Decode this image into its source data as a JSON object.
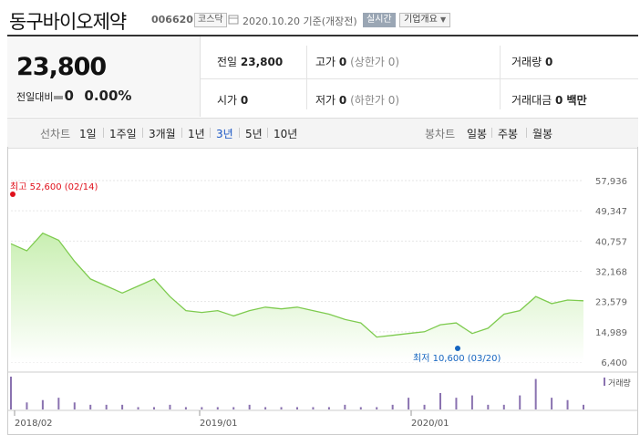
{
  "header": {
    "company_name": "동구바이오제약",
    "stock_code": "006620",
    "market": "코스닥",
    "date_text": "2020.10.20 기준(개장전)",
    "live_label": "실시간",
    "company_info_label": "기업개요"
  },
  "quote": {
    "price": "23,800",
    "change_label": "전일대비",
    "change_value": "0",
    "change_pct": "0.00%",
    "prev_close_label": "전일",
    "prev_close": "23,800",
    "high_label": "고가",
    "high": "0",
    "high_note": "(상한가 0)",
    "volume_label": "거래량",
    "volume": "0",
    "open_label": "시가",
    "open": "0",
    "low_label": "저가",
    "low": "0",
    "low_note": "(하한가 0)",
    "value_label": "거래대금",
    "value": "0 백만"
  },
  "periods": {
    "line_label": "선차트",
    "line_options": [
      "1일",
      "1주일",
      "3개월",
      "1년",
      "3년",
      "5년",
      "10년"
    ],
    "selected": "3년",
    "candle_label": "봉차트",
    "candle_options": [
      "일봉",
      "주봉",
      "월봉"
    ]
  },
  "colors": {
    "line": "#7ecb4f",
    "area_top": "#c9efb2",
    "selected": "#1a56c4",
    "high_marker": "#e0101b",
    "low_marker": "#1565c0",
    "volume_bar": "#8a72b0"
  },
  "chart_data": {
    "type": "area",
    "ylim": [
      6400,
      57936
    ],
    "y_ticks": [
      "57,936",
      "49,347",
      "40,757",
      "32,168",
      "23,579",
      "14,989",
      "6,400"
    ],
    "x_tick_labels": [
      "2018/02",
      "2019/01",
      "2020/01"
    ],
    "high_label": "최고 52,600 (02/14)",
    "low_label": "최저 10,600 (03/20)",
    "volume_legend": "거래량",
    "x": [
      "2017-10",
      "2017-11",
      "2017-12",
      "2018-01",
      "2018-02",
      "2018-03",
      "2018-04",
      "2018-05",
      "2018-06",
      "2018-07",
      "2018-08",
      "2018-09",
      "2018-10",
      "2018-11",
      "2018-12",
      "2019-01",
      "2019-02",
      "2019-03",
      "2019-04",
      "2019-05",
      "2019-06",
      "2019-07",
      "2019-08",
      "2019-09",
      "2019-10",
      "2019-11",
      "2019-12",
      "2020-01",
      "2020-02",
      "2020-03",
      "2020-04",
      "2020-05",
      "2020-06",
      "2020-07",
      "2020-08",
      "2020-09",
      "2020-10"
    ],
    "values": [
      40000,
      38000,
      43000,
      41000,
      35000,
      30000,
      28000,
      26000,
      28000,
      30000,
      25000,
      21000,
      20500,
      21000,
      19500,
      21000,
      22000,
      21500,
      22000,
      21000,
      20000,
      18500,
      17500,
      13500,
      14000,
      14500,
      15000,
      17000,
      17500,
      14500,
      16000,
      20000,
      21000,
      25000,
      23000,
      24000,
      23800
    ],
    "volume": [
      14,
      3,
      4,
      5,
      3,
      2,
      2,
      2,
      1,
      1,
      2,
      1,
      1,
      1,
      1,
      2,
      1,
      1,
      1,
      1,
      1,
      2,
      1,
      1,
      2,
      5,
      2,
      7,
      5,
      6,
      2,
      2,
      6,
      13,
      5,
      4,
      2
    ]
  }
}
